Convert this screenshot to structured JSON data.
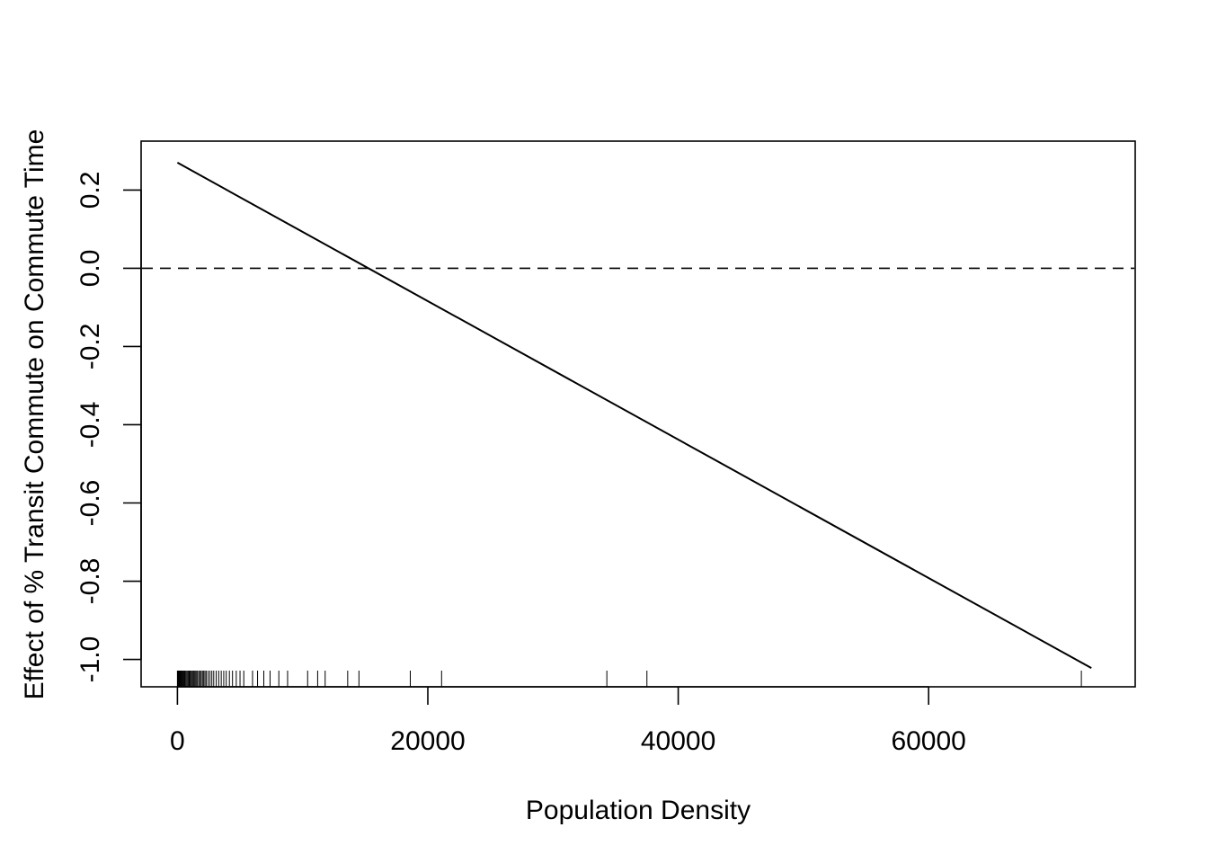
{
  "chart_data": {
    "type": "line",
    "title": "",
    "xlabel": "Population Density",
    "ylabel": "Effect of % Transit Commute on Commute Time",
    "xlim": [
      -2900,
      76500
    ],
    "ylim": [
      -1.07,
      0.325
    ],
    "xticks": [
      0,
      20000,
      40000,
      60000
    ],
    "xtick_labels": [
      "0",
      "20000",
      "40000",
      "60000"
    ],
    "yticks": [
      -1.0,
      -0.8,
      -0.6,
      -0.4,
      -0.2,
      0.0,
      0.2
    ],
    "ytick_labels": [
      "-1.0",
      "-0.8",
      "-0.6",
      "-0.4",
      "-0.2",
      "0.0",
      "0.2"
    ],
    "series": [
      {
        "x": [
          0,
          73000
        ],
        "y": [
          0.27,
          -1.022
        ]
      }
    ],
    "reference_line": {
      "y": 0,
      "style": "dashed"
    },
    "rug_x": [
      0,
      40,
      80,
      120,
      160,
      200,
      260,
      320,
      380,
      440,
      500,
      560,
      620,
      700,
      780,
      860,
      940,
      1020,
      1100,
      1180,
      1260,
      1340,
      1420,
      1500,
      1600,
      1700,
      1800,
      1900,
      2000,
      2100,
      2200,
      2300,
      2450,
      2600,
      2750,
      2900,
      3100,
      3300,
      3500,
      3700,
      3900,
      4150,
      4400,
      4700,
      5000,
      5300,
      6000,
      6400,
      6900,
      7400,
      8100,
      8800,
      10400,
      11200,
      11800,
      13600,
      14500,
      18600,
      21100,
      34300,
      37500,
      72200
    ],
    "grid": false,
    "legend": "none"
  }
}
